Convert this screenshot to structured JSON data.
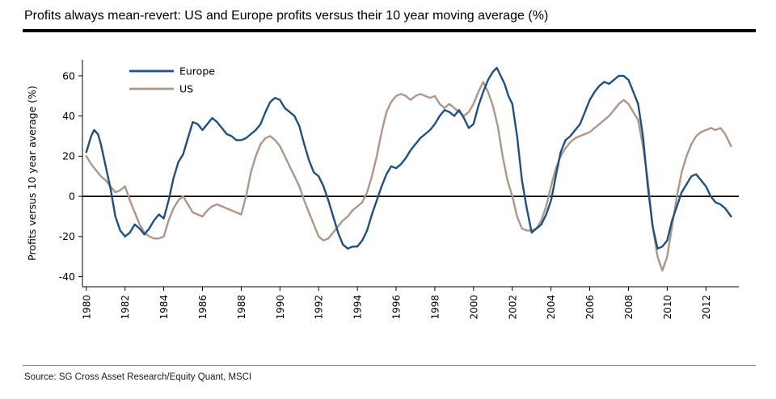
{
  "header": {
    "title": "Profits always mean-revert: US and Europe profits versus their 10 year moving average (%)"
  },
  "footer": {
    "source": "Source: SG Cross Asset Research/Equity Quant, MSCI"
  },
  "chart_data": {
    "type": "line",
    "title": "Profits always mean-revert: US and Europe profits versus their 10 year moving average (%)",
    "xlabel": "",
    "ylabel": "Profits versus 10 year average (%)",
    "ylim": [
      -45,
      68
    ],
    "xlim": [
      1979.8,
      2013.7
    ],
    "yticks": [
      -40,
      -20,
      0,
      20,
      40,
      60
    ],
    "xticks": [
      1980,
      1982,
      1984,
      1986,
      1988,
      1990,
      1992,
      1994,
      1996,
      1998,
      2000,
      2002,
      2004,
      2006,
      2008,
      2010,
      2012
    ],
    "grid": false,
    "zero_line": true,
    "legend_position": "top-left",
    "series": [
      {
        "name": "Europe",
        "color": "#1f5080",
        "points": [
          [
            1980.0,
            22
          ],
          [
            1980.25,
            30
          ],
          [
            1980.4,
            33
          ],
          [
            1980.6,
            31
          ],
          [
            1980.75,
            26
          ],
          [
            1981.0,
            15
          ],
          [
            1981.25,
            4
          ],
          [
            1981.5,
            -10
          ],
          [
            1981.75,
            -17
          ],
          [
            1982.0,
            -20
          ],
          [
            1982.25,
            -18
          ],
          [
            1982.5,
            -14
          ],
          [
            1982.75,
            -16
          ],
          [
            1983.0,
            -19
          ],
          [
            1983.25,
            -16
          ],
          [
            1983.5,
            -12
          ],
          [
            1983.75,
            -9
          ],
          [
            1984.0,
            -11
          ],
          [
            1984.25,
            -2
          ],
          [
            1984.5,
            9
          ],
          [
            1984.75,
            17
          ],
          [
            1985.0,
            21
          ],
          [
            1985.25,
            29
          ],
          [
            1985.5,
            37
          ],
          [
            1985.75,
            36
          ],
          [
            1986.0,
            33
          ],
          [
            1986.25,
            36
          ],
          [
            1986.5,
            39
          ],
          [
            1986.75,
            37
          ],
          [
            1987.0,
            34
          ],
          [
            1987.25,
            31
          ],
          [
            1987.5,
            30
          ],
          [
            1987.75,
            28
          ],
          [
            1988.0,
            28
          ],
          [
            1988.25,
            29
          ],
          [
            1988.5,
            31
          ],
          [
            1988.75,
            33
          ],
          [
            1989.0,
            36
          ],
          [
            1989.25,
            42
          ],
          [
            1989.5,
            47
          ],
          [
            1989.75,
            49
          ],
          [
            1990.0,
            48
          ],
          [
            1990.25,
            44
          ],
          [
            1990.5,
            42
          ],
          [
            1990.75,
            40
          ],
          [
            1991.0,
            35
          ],
          [
            1991.25,
            26
          ],
          [
            1991.5,
            18
          ],
          [
            1991.75,
            12
          ],
          [
            1992.0,
            10
          ],
          [
            1992.25,
            5
          ],
          [
            1992.5,
            -2
          ],
          [
            1992.75,
            -10
          ],
          [
            1993.0,
            -18
          ],
          [
            1993.25,
            -24
          ],
          [
            1993.5,
            -26
          ],
          [
            1993.75,
            -25
          ],
          [
            1994.0,
            -25
          ],
          [
            1994.25,
            -22
          ],
          [
            1994.5,
            -17
          ],
          [
            1994.75,
            -9
          ],
          [
            1995.0,
            -2
          ],
          [
            1995.25,
            5
          ],
          [
            1995.5,
            11
          ],
          [
            1995.75,
            15
          ],
          [
            1996.0,
            14
          ],
          [
            1996.25,
            16
          ],
          [
            1996.5,
            19
          ],
          [
            1996.75,
            23
          ],
          [
            1997.0,
            26
          ],
          [
            1997.25,
            29
          ],
          [
            1997.5,
            31
          ],
          [
            1997.75,
            33
          ],
          [
            1998.0,
            36
          ],
          [
            1998.25,
            40
          ],
          [
            1998.5,
            43
          ],
          [
            1998.75,
            42
          ],
          [
            1999.0,
            40
          ],
          [
            1999.25,
            43
          ],
          [
            1999.5,
            39
          ],
          [
            1999.75,
            34
          ],
          [
            2000.0,
            36
          ],
          [
            2000.25,
            45
          ],
          [
            2000.5,
            52
          ],
          [
            2000.75,
            58
          ],
          [
            2001.0,
            62
          ],
          [
            2001.2,
            64
          ],
          [
            2001.4,
            60
          ],
          [
            2001.6,
            56
          ],
          [
            2001.8,
            50
          ],
          [
            2002.0,
            46
          ],
          [
            2002.25,
            30
          ],
          [
            2002.5,
            8
          ],
          [
            2002.75,
            -6
          ],
          [
            2003.0,
            -18
          ],
          [
            2003.25,
            -16
          ],
          [
            2003.5,
            -14
          ],
          [
            2003.75,
            -9
          ],
          [
            2004.0,
            -2
          ],
          [
            2004.25,
            10
          ],
          [
            2004.5,
            22
          ],
          [
            2004.75,
            28
          ],
          [
            2005.0,
            30
          ],
          [
            2005.25,
            33
          ],
          [
            2005.5,
            36
          ],
          [
            2005.75,
            42
          ],
          [
            2006.0,
            48
          ],
          [
            2006.25,
            52
          ],
          [
            2006.5,
            55
          ],
          [
            2006.75,
            57
          ],
          [
            2007.0,
            56
          ],
          [
            2007.25,
            58
          ],
          [
            2007.5,
            60
          ],
          [
            2007.75,
            60
          ],
          [
            2008.0,
            58
          ],
          [
            2008.25,
            52
          ],
          [
            2008.5,
            46
          ],
          [
            2008.75,
            30
          ],
          [
            2009.0,
            5
          ],
          [
            2009.25,
            -15
          ],
          [
            2009.5,
            -26
          ],
          [
            2009.75,
            -25
          ],
          [
            2010.0,
            -22
          ],
          [
            2010.25,
            -12
          ],
          [
            2010.5,
            -5
          ],
          [
            2010.75,
            2
          ],
          [
            2011.0,
            6
          ],
          [
            2011.25,
            10
          ],
          [
            2011.5,
            11
          ],
          [
            2011.75,
            8
          ],
          [
            2012.0,
            5
          ],
          [
            2012.25,
            0
          ],
          [
            2012.5,
            -3
          ],
          [
            2012.75,
            -4
          ],
          [
            2013.0,
            -6
          ],
          [
            2013.3,
            -10
          ]
        ]
      },
      {
        "name": "US",
        "color": "#b09688",
        "points": [
          [
            1980.0,
            20
          ],
          [
            1980.25,
            16
          ],
          [
            1980.5,
            13
          ],
          [
            1980.75,
            10
          ],
          [
            1981.0,
            8
          ],
          [
            1981.25,
            5
          ],
          [
            1981.5,
            2
          ],
          [
            1981.75,
            3
          ],
          [
            1982.0,
            5
          ],
          [
            1982.25,
            -2
          ],
          [
            1982.5,
            -8
          ],
          [
            1982.75,
            -14
          ],
          [
            1983.0,
            -18
          ],
          [
            1983.25,
            -20
          ],
          [
            1983.5,
            -21
          ],
          [
            1983.75,
            -21
          ],
          [
            1984.0,
            -20
          ],
          [
            1984.25,
            -12
          ],
          [
            1984.5,
            -6
          ],
          [
            1984.75,
            -2
          ],
          [
            1985.0,
            0
          ],
          [
            1985.25,
            -4
          ],
          [
            1985.5,
            -8
          ],
          [
            1985.75,
            -9
          ],
          [
            1986.0,
            -10
          ],
          [
            1986.25,
            -7
          ],
          [
            1986.5,
            -5
          ],
          [
            1986.75,
            -4
          ],
          [
            1987.0,
            -5
          ],
          [
            1987.25,
            -6
          ],
          [
            1987.5,
            -7
          ],
          [
            1987.75,
            -8
          ],
          [
            1988.0,
            -9
          ],
          [
            1988.25,
            0
          ],
          [
            1988.5,
            12
          ],
          [
            1988.75,
            20
          ],
          [
            1989.0,
            26
          ],
          [
            1989.25,
            29
          ],
          [
            1989.5,
            30
          ],
          [
            1989.75,
            28
          ],
          [
            1990.0,
            25
          ],
          [
            1990.25,
            20
          ],
          [
            1990.5,
            15
          ],
          [
            1990.75,
            10
          ],
          [
            1991.0,
            5
          ],
          [
            1991.25,
            -2
          ],
          [
            1991.5,
            -8
          ],
          [
            1991.75,
            -14
          ],
          [
            1992.0,
            -20
          ],
          [
            1992.25,
            -22
          ],
          [
            1992.5,
            -21
          ],
          [
            1992.75,
            -18
          ],
          [
            1993.0,
            -15
          ],
          [
            1993.25,
            -12
          ],
          [
            1993.5,
            -10
          ],
          [
            1993.75,
            -7
          ],
          [
            1994.0,
            -5
          ],
          [
            1994.25,
            -3
          ],
          [
            1994.5,
            2
          ],
          [
            1994.75,
            10
          ],
          [
            1995.0,
            20
          ],
          [
            1995.25,
            32
          ],
          [
            1995.5,
            42
          ],
          [
            1995.75,
            47
          ],
          [
            1996.0,
            50
          ],
          [
            1996.25,
            51
          ],
          [
            1996.5,
            50
          ],
          [
            1996.75,
            48
          ],
          [
            1997.0,
            50
          ],
          [
            1997.25,
            51
          ],
          [
            1997.5,
            50
          ],
          [
            1997.75,
            49
          ],
          [
            1998.0,
            50
          ],
          [
            1998.25,
            46
          ],
          [
            1998.5,
            44
          ],
          [
            1998.75,
            46
          ],
          [
            1999.0,
            44
          ],
          [
            1999.25,
            42
          ],
          [
            1999.5,
            40
          ],
          [
            1999.75,
            42
          ],
          [
            2000.0,
            46
          ],
          [
            2000.25,
            52
          ],
          [
            2000.5,
            57
          ],
          [
            2000.75,
            52
          ],
          [
            2001.0,
            45
          ],
          [
            2001.25,
            35
          ],
          [
            2001.5,
            20
          ],
          [
            2001.75,
            8
          ],
          [
            2002.0,
            0
          ],
          [
            2002.25,
            -10
          ],
          [
            2002.5,
            -16
          ],
          [
            2002.75,
            -17
          ],
          [
            2003.0,
            -17
          ],
          [
            2003.25,
            -16
          ],
          [
            2003.5,
            -12
          ],
          [
            2003.75,
            -5
          ],
          [
            2004.0,
            5
          ],
          [
            2004.25,
            14
          ],
          [
            2004.5,
            20
          ],
          [
            2004.75,
            24
          ],
          [
            2005.0,
            27
          ],
          [
            2005.25,
            29
          ],
          [
            2005.5,
            30
          ],
          [
            2005.75,
            31
          ],
          [
            2006.0,
            32
          ],
          [
            2006.25,
            34
          ],
          [
            2006.5,
            36
          ],
          [
            2006.75,
            38
          ],
          [
            2007.0,
            40
          ],
          [
            2007.25,
            43
          ],
          [
            2007.5,
            46
          ],
          [
            2007.75,
            48
          ],
          [
            2008.0,
            46
          ],
          [
            2008.25,
            42
          ],
          [
            2008.5,
            38
          ],
          [
            2008.75,
            25
          ],
          [
            2009.0,
            8
          ],
          [
            2009.25,
            -15
          ],
          [
            2009.5,
            -30
          ],
          [
            2009.75,
            -37
          ],
          [
            2010.0,
            -30
          ],
          [
            2010.25,
            -15
          ],
          [
            2010.5,
            0
          ],
          [
            2010.75,
            12
          ],
          [
            2011.0,
            20
          ],
          [
            2011.25,
            26
          ],
          [
            2011.5,
            30
          ],
          [
            2011.75,
            32
          ],
          [
            2012.0,
            33
          ],
          [
            2012.25,
            34
          ],
          [
            2012.5,
            33
          ],
          [
            2012.75,
            34
          ],
          [
            2013.0,
            31
          ],
          [
            2013.3,
            25
          ]
        ]
      }
    ]
  }
}
